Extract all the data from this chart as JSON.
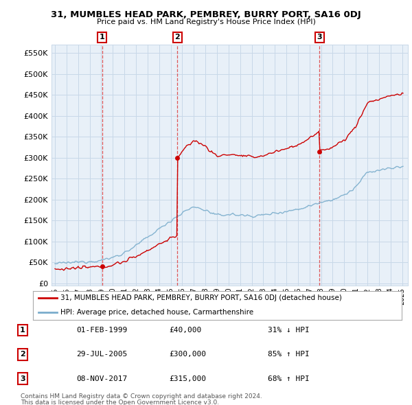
{
  "title1": "31, MUMBLES HEAD PARK, PEMBREY, BURRY PORT, SA16 0DJ",
  "title2": "Price paid vs. HM Land Registry's House Price Index (HPI)",
  "ylabel_ticks": [
    "£0",
    "£50K",
    "£100K",
    "£150K",
    "£200K",
    "£250K",
    "£300K",
    "£350K",
    "£400K",
    "£450K",
    "£500K",
    "£550K"
  ],
  "ytick_vals": [
    0,
    50000,
    100000,
    150000,
    200000,
    250000,
    300000,
    350000,
    400000,
    450000,
    500000,
    550000
  ],
  "xlim_start": 1994.7,
  "xlim_end": 2025.5,
  "ylim_min": -5000,
  "ylim_max": 570000,
  "sale_color": "#cc0000",
  "hpi_color": "#7aadcc",
  "sale_label": "31, MUMBLES HEAD PARK, PEMBREY, BURRY PORT, SA16 0DJ (detached house)",
  "hpi_label": "HPI: Average price, detached house, Carmarthenshire",
  "chart_bg": "#e8f0f8",
  "transactions": [
    {
      "num": 1,
      "date_x": 1999.08,
      "price": 40000,
      "label": "1",
      "hpi_pct": "31% ↓ HPI",
      "date_str": "01-FEB-1999",
      "price_str": "£40,000"
    },
    {
      "num": 2,
      "date_x": 2005.58,
      "price": 300000,
      "label": "2",
      "hpi_pct": "85% ↑ HPI",
      "date_str": "29-JUL-2005",
      "price_str": "£300,000"
    },
    {
      "num": 3,
      "date_x": 2017.85,
      "price": 315000,
      "label": "3",
      "hpi_pct": "68% ↑ HPI",
      "date_str": "08-NOV-2017",
      "price_str": "£315,000"
    }
  ],
  "footnote1": "Contains HM Land Registry data © Crown copyright and database right 2024.",
  "footnote2": "This data is licensed under the Open Government Licence v3.0.",
  "background_color": "#ffffff",
  "grid_color": "#c8d8e8",
  "vline_color": "#dd4444"
}
